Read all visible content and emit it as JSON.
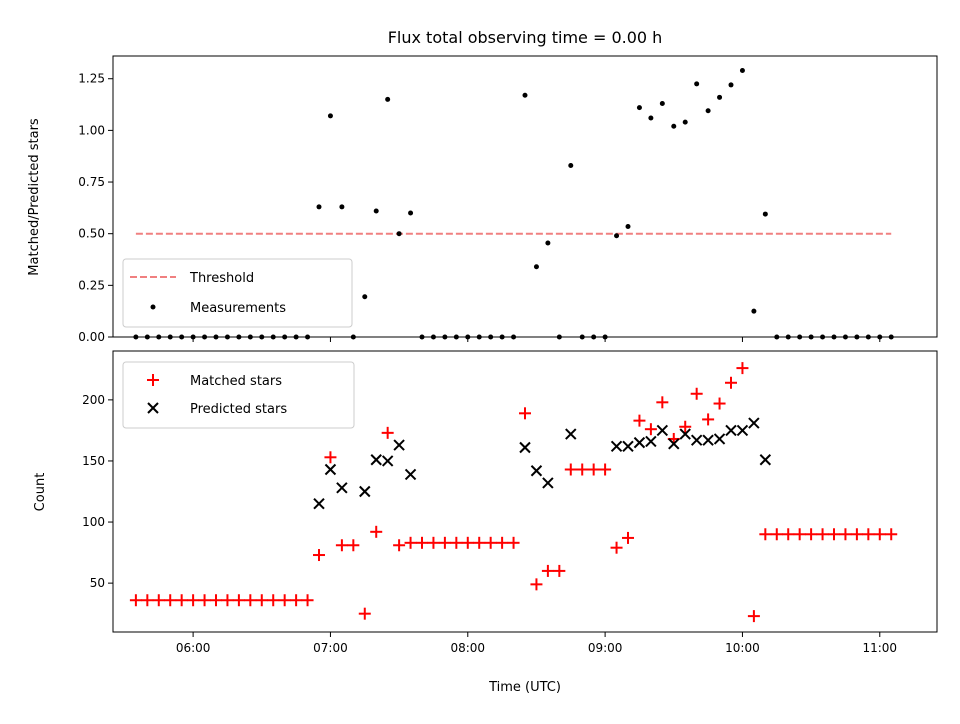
{
  "chart_data": [
    {
      "type": "scatter",
      "title": "Flux total observing time = 0.00 h",
      "ylabel": "Matched/Predicted stars",
      "xlabel": "",
      "ylim": [
        0,
        1.36
      ],
      "xlim": [
        "05:25",
        "11:25"
      ],
      "yticks": [
        "0.00",
        "0.25",
        "0.50",
        "0.75",
        "1.00",
        "1.25"
      ],
      "yticks_values": [
        0,
        0.25,
        0.5,
        0.75,
        1.0,
        1.25
      ],
      "xticks": [
        "06:00",
        "07:00",
        "08:00",
        "09:00",
        "10:00",
        "11:00"
      ],
      "show_xtick_labels": false,
      "legend_position": "lower-left",
      "threshold": {
        "name": "Threshold",
        "value": 0.5,
        "x_range": [
          "05:35",
          "11:05"
        ],
        "style": "dashed",
        "color": "#f08080"
      },
      "series": [
        {
          "name": "Measurements",
          "color": "#000000",
          "marker": "dot",
          "points": [
            [
              "05:35",
              0
            ],
            [
              "05:40",
              0
            ],
            [
              "05:45",
              0
            ],
            [
              "05:50",
              0
            ],
            [
              "05:55",
              0
            ],
            [
              "06:00",
              0
            ],
            [
              "06:05",
              0
            ],
            [
              "06:10",
              0
            ],
            [
              "06:15",
              0
            ],
            [
              "06:20",
              0
            ],
            [
              "06:25",
              0
            ],
            [
              "06:30",
              0
            ],
            [
              "06:35",
              0
            ],
            [
              "06:40",
              0
            ],
            [
              "06:45",
              0
            ],
            [
              "06:50",
              0
            ],
            [
              "06:55",
              0.63
            ],
            [
              "07:00",
              1.07
            ],
            [
              "07:05",
              0.63
            ],
            [
              "07:10",
              0
            ],
            [
              "07:15",
              0.195
            ],
            [
              "07:20",
              0.61
            ],
            [
              "07:25",
              1.15
            ],
            [
              "07:30",
              0.5
            ],
            [
              "07:35",
              0.6
            ],
            [
              "07:40",
              0
            ],
            [
              "07:45",
              0
            ],
            [
              "07:50",
              0
            ],
            [
              "07:55",
              0
            ],
            [
              "08:00",
              0
            ],
            [
              "08:05",
              0
            ],
            [
              "08:10",
              0
            ],
            [
              "08:15",
              0
            ],
            [
              "08:20",
              0
            ],
            [
              "08:25",
              1.17
            ],
            [
              "08:30",
              0.34
            ],
            [
              "08:35",
              0.455
            ],
            [
              "08:40",
              0
            ],
            [
              "08:45",
              0.83
            ],
            [
              "08:50",
              0
            ],
            [
              "08:55",
              0
            ],
            [
              "09:00",
              0
            ],
            [
              "09:05",
              0.49
            ],
            [
              "09:10",
              0.535
            ],
            [
              "09:15",
              1.11
            ],
            [
              "09:20",
              1.06
            ],
            [
              "09:25",
              1.13
            ],
            [
              "09:30",
              1.02
            ],
            [
              "09:35",
              1.04
            ],
            [
              "09:40",
              1.225
            ],
            [
              "09:45",
              1.095
            ],
            [
              "09:50",
              1.16
            ],
            [
              "09:55",
              1.22
            ],
            [
              "10:00",
              1.29
            ],
            [
              "10:05",
              0.125
            ],
            [
              "10:10",
              0.595
            ],
            [
              "10:15",
              0
            ],
            [
              "10:20",
              0
            ],
            [
              "10:25",
              0
            ],
            [
              "10:30",
              0
            ],
            [
              "10:35",
              0
            ],
            [
              "10:40",
              0
            ],
            [
              "10:45",
              0
            ],
            [
              "10:50",
              0
            ],
            [
              "10:55",
              0
            ],
            [
              "11:00",
              0
            ],
            [
              "11:05",
              0
            ]
          ]
        }
      ]
    },
    {
      "type": "scatter",
      "title": "",
      "ylabel": "Count",
      "xlabel": "Time (UTC)",
      "ylim": [
        10,
        240
      ],
      "xlim": [
        "05:25",
        "11:25"
      ],
      "yticks": [
        "50",
        "100",
        "150",
        "200"
      ],
      "yticks_values": [
        50,
        100,
        150,
        200
      ],
      "xticks": [
        "06:00",
        "07:00",
        "08:00",
        "09:00",
        "10:00",
        "11:00"
      ],
      "legend_position": "top-left",
      "series": [
        {
          "name": "Matched stars",
          "color": "#ff0000",
          "marker": "plus",
          "points": [
            [
              "05:35",
              36
            ],
            [
              "05:40",
              36
            ],
            [
              "05:45",
              36
            ],
            [
              "05:50",
              36
            ],
            [
              "05:55",
              36
            ],
            [
              "06:00",
              36
            ],
            [
              "06:05",
              36
            ],
            [
              "06:10",
              36
            ],
            [
              "06:15",
              36
            ],
            [
              "06:20",
              36
            ],
            [
              "06:25",
              36
            ],
            [
              "06:30",
              36
            ],
            [
              "06:35",
              36
            ],
            [
              "06:40",
              36
            ],
            [
              "06:45",
              36
            ],
            [
              "06:50",
              36
            ],
            [
              "06:55",
              73
            ],
            [
              "07:00",
              153
            ],
            [
              "07:05",
              81
            ],
            [
              "07:10",
              81
            ],
            [
              "07:15",
              25
            ],
            [
              "07:20",
              92
            ],
            [
              "07:25",
              173
            ],
            [
              "07:30",
              81
            ],
            [
              "07:35",
              83
            ],
            [
              "07:40",
              83
            ],
            [
              "07:45",
              83
            ],
            [
              "07:50",
              83
            ],
            [
              "07:55",
              83
            ],
            [
              "08:00",
              83
            ],
            [
              "08:05",
              83
            ],
            [
              "08:10",
              83
            ],
            [
              "08:15",
              83
            ],
            [
              "08:20",
              83
            ],
            [
              "08:25",
              189
            ],
            [
              "08:30",
              49
            ],
            [
              "08:35",
              60
            ],
            [
              "08:40",
              60
            ],
            [
              "08:45",
              143
            ],
            [
              "08:50",
              143
            ],
            [
              "08:55",
              143
            ],
            [
              "09:00",
              143
            ],
            [
              "09:05",
              79
            ],
            [
              "09:10",
              87
            ],
            [
              "09:15",
              183
            ],
            [
              "09:20",
              176
            ],
            [
              "09:25",
              198
            ],
            [
              "09:30",
              168
            ],
            [
              "09:35",
              178
            ],
            [
              "09:40",
              205
            ],
            [
              "09:45",
              184
            ],
            [
              "09:50",
              197
            ],
            [
              "09:55",
              214
            ],
            [
              "10:00",
              226
            ],
            [
              "10:05",
              23
            ],
            [
              "10:10",
              90
            ],
            [
              "10:15",
              90
            ],
            [
              "10:20",
              90
            ],
            [
              "10:25",
              90
            ],
            [
              "10:30",
              90
            ],
            [
              "10:35",
              90
            ],
            [
              "10:40",
              90
            ],
            [
              "10:45",
              90
            ],
            [
              "10:50",
              90
            ],
            [
              "10:55",
              90
            ],
            [
              "11:00",
              90
            ],
            [
              "11:05",
              90
            ]
          ]
        },
        {
          "name": "Predicted stars",
          "color": "#000000",
          "marker": "x",
          "points": [
            [
              "06:55",
              115
            ],
            [
              "07:00",
              143
            ],
            [
              "07:05",
              128
            ],
            [
              "07:15",
              125
            ],
            [
              "07:20",
              151
            ],
            [
              "07:25",
              150
            ],
            [
              "07:30",
              163
            ],
            [
              "07:35",
              139
            ],
            [
              "08:25",
              161
            ],
            [
              "08:30",
              142
            ],
            [
              "08:35",
              132
            ],
            [
              "08:45",
              172
            ],
            [
              "09:05",
              162
            ],
            [
              "09:10",
              162
            ],
            [
              "09:15",
              165
            ],
            [
              "09:20",
              166
            ],
            [
              "09:25",
              175
            ],
            [
              "09:30",
              164
            ],
            [
              "09:35",
              172
            ],
            [
              "09:40",
              167
            ],
            [
              "09:45",
              167
            ],
            [
              "09:50",
              168
            ],
            [
              "09:55",
              175
            ],
            [
              "10:00",
              175
            ],
            [
              "10:05",
              181
            ],
            [
              "10:10",
              151
            ]
          ]
        }
      ]
    }
  ]
}
